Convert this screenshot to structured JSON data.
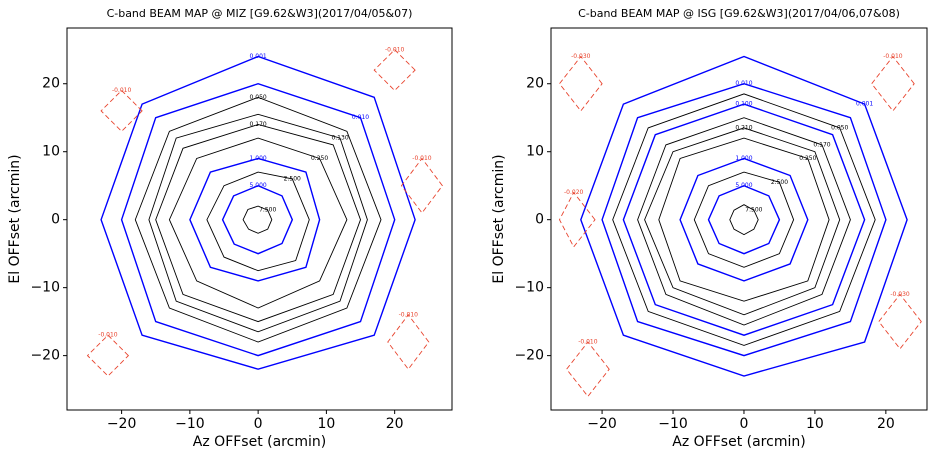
{
  "chart_data": [
    {
      "type": "contour",
      "title": "C-band BEAM MAP @ MIZ [G9.62&W3](2017/04/05&07)",
      "xlabel": "Az OFFset (arcmin)",
      "ylabel": "El OFFset (arcmin)",
      "xlim": [
        -28,
        28.4
      ],
      "ylim": [
        -28,
        28.2
      ],
      "xticks": [
        {
          "value": -20,
          "label": "−20"
        },
        {
          "value": -10,
          "label": "−10"
        },
        0,
        10,
        20
      ],
      "yticks": [
        {
          "value": -20,
          "label": "−20"
        },
        {
          "value": -10,
          "label": "−10"
        },
        0,
        10,
        20
      ],
      "contours": [
        {
          "level": 7.5,
          "label": "7.500",
          "color": "#000000",
          "style": "solid",
          "x": [
            2,
            1.4,
            0,
            -1.5,
            -2.2,
            -1.4,
            0,
            1.4
          ],
          "y": [
            0,
            1.4,
            2,
            1.5,
            0,
            -1.4,
            -2,
            -1.4
          ]
        },
        {
          "level": 5,
          "label": "5.000",
          "color": "#0000ff",
          "style": "solid",
          "x": [
            5,
            3.5,
            0,
            -3.6,
            -5.2,
            -3.5,
            0,
            3.5
          ],
          "y": [
            0,
            3.5,
            5,
            3.5,
            0,
            -3.6,
            -5,
            -3.5
          ]
        },
        {
          "level": 2.5,
          "label": "2.500",
          "color": "#000000",
          "style": "solid",
          "x": [
            7.5,
            5,
            0,
            -5,
            -7.5,
            -5,
            0,
            5.5
          ],
          "y": [
            0,
            6,
            7,
            5,
            0,
            -5.5,
            -7.5,
            -6
          ]
        },
        {
          "level": 1,
          "label": "1.000",
          "color": "#0000ff",
          "style": "solid",
          "x": [
            9,
            7,
            0,
            -7,
            -10,
            -7,
            0,
            7
          ],
          "y": [
            0,
            7,
            9,
            7,
            0,
            -7,
            -9,
            -7
          ]
        },
        {
          "level": 0.25,
          "label": "0.250",
          "color": "#000000",
          "style": "solid",
          "x": [
            13,
            9,
            0,
            -9,
            -13,
            -9,
            0,
            9
          ],
          "y": [
            0,
            9,
            12,
            9,
            0,
            -9,
            -13,
            -9
          ]
        },
        {
          "level": 0.17,
          "label": "0.170",
          "color": "#000000",
          "style": "solid",
          "x": [
            15,
            11,
            0,
            -11,
            -15,
            -11,
            0,
            11
          ],
          "y": [
            0,
            11,
            14,
            10.5,
            0,
            -11,
            -15,
            -11
          ]
        },
        {
          "level": 0.13,
          "label": "0.130",
          "color": "#000000",
          "style": "solid",
          "x": [
            16,
            12,
            0,
            -12,
            -16,
            -12,
            0,
            12
          ],
          "y": [
            0,
            12,
            15.5,
            12,
            0,
            -12,
            -16.5,
            -12
          ]
        },
        {
          "level": 0.05,
          "label": "0.050",
          "color": "#000000",
          "style": "solid",
          "x": [
            18,
            13,
            0,
            -13,
            -18,
            -13,
            0,
            13
          ],
          "y": [
            0,
            13,
            18,
            13,
            0,
            -13,
            -18,
            -13
          ]
        },
        {
          "level": 0.01,
          "label": "0.010",
          "color": "#0000ff",
          "style": "solid",
          "x": [
            20,
            15,
            0,
            -15,
            -20,
            -15,
            0,
            15
          ],
          "y": [
            0,
            15,
            20,
            15,
            0,
            -15,
            -20,
            -15
          ]
        },
        {
          "level": 0.001,
          "label": "0.001",
          "color": "#0000ff",
          "style": "solid",
          "x": [
            23,
            17,
            0,
            -17,
            -23,
            -17,
            0,
            17
          ],
          "y": [
            0,
            18,
            24,
            17,
            0,
            -17,
            -22,
            -17
          ]
        },
        {
          "level": -0.01,
          "label": "-0.010",
          "color": "#e8442e",
          "style": "dashed",
          "x": [
            -17,
            -20,
            -23,
            -20
          ],
          "y": [
            16,
            19,
            16,
            13
          ]
        },
        {
          "level": -0.01,
          "label": "-0.010",
          "color": "#e8442e",
          "style": "dashed",
          "x": [
            23,
            20,
            17,
            20
          ],
          "y": [
            22,
            25,
            22,
            19
          ]
        },
        {
          "level": -0.01,
          "label": "-0.010",
          "color": "#e8442e",
          "style": "dashed",
          "x": [
            25,
            22,
            19,
            22
          ],
          "y": [
            -18,
            -14,
            -18,
            -22
          ]
        },
        {
          "level": -0.01,
          "label": "-0.010",
          "color": "#e8442e",
          "style": "dashed",
          "x": [
            -19,
            -22,
            -25,
            -22
          ],
          "y": [
            -20,
            -17,
            -20,
            -23
          ]
        },
        {
          "level": -0.01,
          "label": "-0.010",
          "color": "#e8442e",
          "style": "dashed",
          "x": [
            27,
            24,
            21,
            24
          ],
          "y": [
            5,
            9,
            5,
            1
          ]
        }
      ]
    },
    {
      "type": "contour",
      "title": "C-band BEAM MAP @ ISG [G9.62&W3](2017/04/06,07&08)",
      "xlabel": "Az OFFset (arcmin)",
      "ylabel": "El OFFset (arcmin)",
      "xlim": [
        -27.2,
        25.8
      ],
      "ylim": [
        -28,
        28.2
      ],
      "xticks": [
        {
          "value": -20,
          "label": "−20"
        },
        {
          "value": -10,
          "label": "−10"
        },
        0,
        10,
        20
      ],
      "yticks": [
        {
          "value": -20,
          "label": "−20"
        },
        {
          "value": -10,
          "label": "−10"
        },
        0,
        10,
        20
      ],
      "contours": [
        {
          "level": 7.5,
          "label": "7.500",
          "color": "#000000",
          "style": "solid",
          "x": [
            2,
            1.4,
            0,
            -1.4,
            -2,
            -1.4,
            0,
            1.4
          ],
          "y": [
            0,
            1.4,
            2.2,
            1.4,
            0,
            -1.4,
            -2.2,
            -1.4
          ]
        },
        {
          "level": 5,
          "label": "5.000",
          "color": "#0000ff",
          "style": "solid",
          "x": [
            5,
            3.5,
            0,
            -3.5,
            -5,
            -3.5,
            0,
            3.5
          ],
          "y": [
            0,
            3.5,
            5,
            3.5,
            0,
            -3.5,
            -5,
            -3.5
          ]
        },
        {
          "level": 2.5,
          "label": "2.500",
          "color": "#000000",
          "style": "solid",
          "x": [
            7,
            5,
            0,
            -5,
            -7,
            -5,
            0,
            5
          ],
          "y": [
            0,
            5.5,
            7,
            5,
            0,
            -5,
            -7,
            -5
          ]
        },
        {
          "level": 1,
          "label": "1.000",
          "color": "#0000ff",
          "style": "solid",
          "x": [
            9,
            6.5,
            0,
            -6.5,
            -9,
            -6.5,
            0,
            6.5
          ],
          "y": [
            0,
            6.5,
            9,
            6.5,
            0,
            -6.5,
            -9,
            -6.5
          ]
        },
        {
          "level": 0.25,
          "label": "0.250",
          "color": "#000000",
          "style": "solid",
          "x": [
            12,
            9,
            0,
            -9,
            -12,
            -9,
            0,
            9
          ],
          "y": [
            0,
            9,
            12,
            9,
            0,
            -9,
            -12,
            -9
          ]
        },
        {
          "level": 0.21,
          "label": "0.210",
          "color": "#000000",
          "style": "solid",
          "x": [
            13.5,
            10,
            0,
            -10,
            -14,
            -10,
            0,
            10
          ],
          "y": [
            0,
            10,
            13.5,
            10,
            0,
            -10,
            -14,
            -10
          ]
        },
        {
          "level": 0.17,
          "label": "0.170",
          "color": "#000000",
          "style": "solid",
          "x": [
            15,
            11,
            0,
            -11,
            -15,
            -11,
            0,
            11
          ],
          "y": [
            0,
            11,
            15,
            11,
            0,
            -11,
            -15.5,
            -11
          ]
        },
        {
          "level": 0.1,
          "label": "0.100",
          "color": "#0000ff",
          "style": "solid",
          "x": [
            17,
            12.5,
            0,
            -12.5,
            -17,
            -12.5,
            0,
            12.5
          ],
          "y": [
            0,
            12.5,
            17,
            12.5,
            0,
            -12.5,
            -17,
            -12.5
          ]
        },
        {
          "level": 0.05,
          "label": "0.050",
          "color": "#000000",
          "style": "solid",
          "x": [
            18.5,
            13.5,
            0,
            -13.5,
            -18.5,
            -13.5,
            0,
            13.5
          ],
          "y": [
            0,
            13.5,
            18.5,
            13.5,
            0,
            -13.5,
            -18.5,
            -13.5
          ]
        },
        {
          "level": 0.01,
          "label": "0.010",
          "color": "#0000ff",
          "style": "solid",
          "x": [
            20,
            15,
            0,
            -15,
            -20,
            -15,
            0,
            15
          ],
          "y": [
            0,
            15,
            20,
            15,
            0,
            -15,
            -20,
            -15
          ]
        },
        {
          "level": 0.001,
          "label": "0.001",
          "color": "#0000ff",
          "style": "solid",
          "x": [
            23,
            17,
            0,
            -17,
            -23,
            -17,
            0,
            17
          ],
          "y": [
            0,
            17,
            24,
            17,
            0,
            -17,
            -23,
            -18
          ]
        },
        {
          "level": -0.03,
          "label": "-0.030",
          "color": "#e8442e",
          "style": "dashed",
          "x": [
            -20,
            -23,
            -26,
            -23
          ],
          "y": [
            20,
            24,
            20,
            16
          ]
        },
        {
          "level": -0.01,
          "label": "-0.010",
          "color": "#e8442e",
          "style": "dashed",
          "x": [
            24,
            21,
            18,
            21
          ],
          "y": [
            20,
            24,
            20,
            16
          ]
        },
        {
          "level": -0.03,
          "label": "-0.030",
          "color": "#e8442e",
          "style": "dashed",
          "x": [
            25,
            22,
            19,
            22
          ],
          "y": [
            -15,
            -11,
            -15,
            -19
          ]
        },
        {
          "level": -0.01,
          "label": "-0.010",
          "color": "#e8442e",
          "style": "dashed",
          "x": [
            -19,
            -22,
            -25,
            -22
          ],
          "y": [
            -22,
            -18,
            -22,
            -26
          ]
        },
        {
          "level": -0.02,
          "label": "-0.020",
          "color": "#e8442e",
          "style": "dashed",
          "x": [
            -21,
            -24,
            -26,
            -24
          ],
          "y": [
            0,
            4,
            0,
            -4
          ]
        }
      ]
    }
  ]
}
